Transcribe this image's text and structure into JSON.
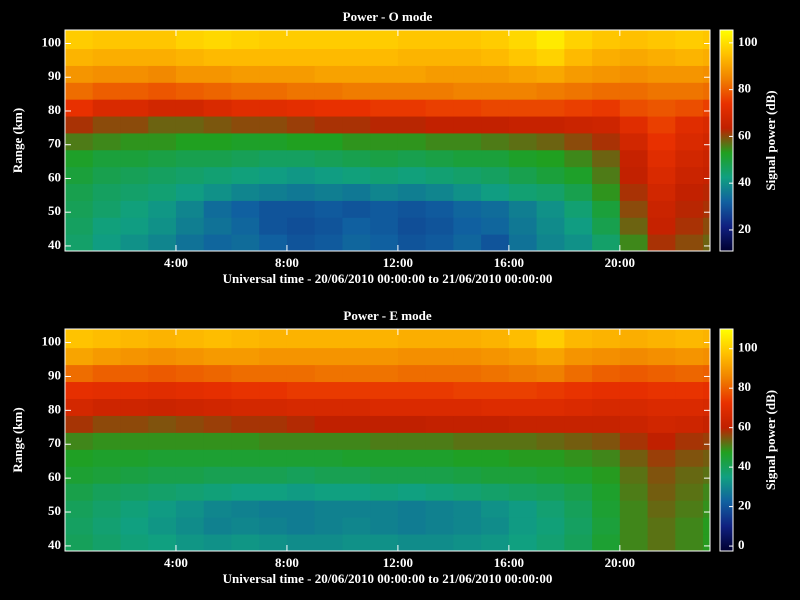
{
  "chart_data": [
    {
      "type": "heatmap",
      "title": "Power - O mode",
      "xlabel": "Universal time - 20/06/2010 00:00:00 to 21/06/2010 00:00:00",
      "ylabel": "Range (km)",
      "colorbar_label": "Signal power (dB)",
      "xbins": [
        0,
        1,
        2,
        3,
        4,
        5,
        6,
        7,
        8,
        9,
        10,
        11,
        12,
        13,
        14,
        15,
        16,
        17,
        18,
        19,
        20,
        21,
        22,
        23,
        23.25
      ],
      "ybins": [
        38.5,
        43.5,
        48.5,
        53.5,
        58.5,
        63.5,
        68.5,
        73.5,
        78.5,
        83.5,
        88.5,
        93.5,
        98.5,
        104
      ],
      "xlim": [
        0,
        23.25
      ],
      "ylim": [
        38.5,
        104
      ],
      "zlim": [
        11,
        105.5
      ],
      "xticks": [
        {
          "value": 4,
          "label": "4:00"
        },
        {
          "value": 8,
          "label": "8:00"
        },
        {
          "value": 12,
          "label": "12:00"
        },
        {
          "value": 16,
          "label": "16:00"
        },
        {
          "value": 20,
          "label": "20:00"
        }
      ],
      "yticks": [
        40,
        50,
        60,
        70,
        80,
        90,
        100
      ],
      "zticks": [
        20,
        40,
        60,
        80,
        100
      ],
      "colorscale": [
        "#000030",
        "#102080",
        "#1060a0",
        "#10a080",
        "#20a020",
        "#c02000",
        "#e83000",
        "#f08000",
        "#ffc000",
        "#ffff00"
      ],
      "z": [
        [
          45,
          42,
          40,
          38,
          35,
          33,
          34,
          32,
          30,
          31,
          33,
          32,
          30,
          31,
          33,
          30,
          35,
          38,
          40,
          45,
          55,
          62,
          60,
          58
        ],
        [
          46,
          43,
          42,
          40,
          37,
          35,
          33,
          30,
          29,
          30,
          32,
          31,
          29,
          30,
          32,
          33,
          36,
          39,
          42,
          48,
          58,
          65,
          62,
          60
        ],
        [
          47,
          45,
          43,
          41,
          38,
          34,
          32,
          30,
          30,
          31,
          30,
          31,
          30,
          31,
          33,
          34,
          37,
          40,
          44,
          50,
          60,
          66,
          63,
          62
        ],
        [
          48,
          46,
          45,
          44,
          42,
          40,
          38,
          37,
          36,
          37,
          36,
          38,
          37,
          38,
          40,
          42,
          44,
          45,
          48,
          54,
          62,
          68,
          64,
          63
        ],
        [
          50,
          48,
          47,
          46,
          45,
          44,
          43,
          42,
          41,
          42,
          43,
          44,
          43,
          44,
          45,
          46,
          48,
          50,
          52,
          56,
          64,
          70,
          66,
          65
        ],
        [
          52,
          50,
          50,
          49,
          48,
          48,
          47,
          46,
          46,
          47,
          48,
          49,
          48,
          49,
          50,
          50,
          52,
          53,
          55,
          58,
          65,
          72,
          68,
          66
        ],
        [
          56,
          55,
          54,
          54,
          53,
          53,
          52,
          52,
          53,
          53,
          54,
          54,
          54,
          55,
          55,
          56,
          57,
          58,
          60,
          62,
          68,
          74,
          70,
          68
        ],
        [
          62,
          60,
          60,
          58,
          58,
          59,
          60,
          60,
          61,
          62,
          62,
          63,
          63,
          64,
          64,
          64,
          65,
          65,
          66,
          67,
          72,
          76,
          72,
          70
        ],
        [
          74,
          70,
          70,
          68,
          68,
          70,
          72,
          72,
          73,
          74,
          74,
          75,
          75,
          76,
          76,
          77,
          77,
          77,
          76,
          75,
          78,
          79,
          78,
          76
        ],
        [
          82,
          80,
          80,
          79,
          80,
          81,
          82,
          82,
          83,
          83,
          84,
          84,
          84,
          84,
          85,
          85,
          85,
          84,
          83,
          82,
          82,
          83,
          83,
          82
        ],
        [
          88,
          87,
          87,
          86,
          88,
          88,
          89,
          89,
          89,
          90,
          90,
          90,
          90,
          89,
          89,
          89,
          90,
          91,
          89,
          88,
          87,
          88,
          88,
          87
        ],
        [
          93,
          92,
          92,
          92,
          93,
          94,
          94,
          94,
          94,
          94,
          94,
          94,
          93,
          93,
          93,
          94,
          96,
          98,
          94,
          92,
          91,
          92,
          93,
          92
        ],
        [
          97,
          96,
          96,
          96,
          98,
          99,
          98,
          97,
          97,
          97,
          97,
          97,
          96,
          96,
          96,
          97,
          99,
          102,
          98,
          96,
          95,
          96,
          97,
          96
        ]
      ]
    },
    {
      "type": "heatmap",
      "title": "Power - E mode",
      "xlabel": "Universal time - 20/06/2010 00:00:00 to 21/06/2010 00:00:00",
      "ylabel": "Range (km)",
      "colorbar_label": "Signal power (dB)",
      "xbins": [
        0,
        1,
        2,
        3,
        4,
        5,
        6,
        7,
        8,
        9,
        10,
        11,
        12,
        13,
        14,
        15,
        16,
        17,
        18,
        19,
        20,
        21,
        22,
        23,
        23.25
      ],
      "ybins": [
        38.5,
        43.5,
        48.5,
        53.5,
        58.5,
        63.5,
        68.5,
        73.5,
        78.5,
        83.5,
        88.5,
        93.5,
        98.5,
        104
      ],
      "xlim": [
        0,
        23.25
      ],
      "ylim": [
        38.5,
        104
      ],
      "zlim": [
        -2.5,
        110
      ],
      "xticks": [
        {
          "value": 4,
          "label": "4:00"
        },
        {
          "value": 8,
          "label": "8:00"
        },
        {
          "value": 12,
          "label": "12:00"
        },
        {
          "value": 16,
          "label": "16:00"
        },
        {
          "value": 20,
          "label": "20:00"
        }
      ],
      "yticks": [
        40,
        50,
        60,
        70,
        80,
        90,
        100
      ],
      "zticks": [
        0,
        20,
        40,
        60,
        80,
        100
      ],
      "colorscale": [
        "#000030",
        "#102080",
        "#1060a0",
        "#10a080",
        "#20a020",
        "#c02000",
        "#e83000",
        "#f08000",
        "#ffc000",
        "#ffff00"
      ],
      "z": [
        [
          40,
          38,
          36,
          35,
          33,
          32,
          33,
          32,
          31,
          31,
          32,
          32,
          31,
          31,
          32,
          33,
          35,
          37,
          40,
          45,
          50,
          52,
          50,
          48
        ],
        [
          39,
          37,
          35,
          33,
          31,
          29,
          30,
          29,
          28,
          29,
          30,
          29,
          28,
          29,
          30,
          31,
          34,
          36,
          39,
          44,
          50,
          52,
          50,
          48
        ],
        [
          40,
          38,
          36,
          34,
          32,
          30,
          29,
          28,
          28,
          29,
          29,
          29,
          28,
          29,
          30,
          32,
          34,
          37,
          40,
          45,
          50,
          53,
          51,
          49
        ],
        [
          42,
          40,
          39,
          38,
          37,
          36,
          35,
          35,
          34,
          35,
          35,
          36,
          35,
          36,
          37,
          38,
          39,
          40,
          42,
          46,
          51,
          54,
          52,
          50
        ],
        [
          45,
          44,
          43,
          42,
          42,
          41,
          41,
          41,
          40,
          41,
          41,
          42,
          42,
          42,
          43,
          44,
          44,
          45,
          46,
          48,
          52,
          55,
          53,
          52
        ],
        [
          47,
          46,
          46,
          45,
          45,
          45,
          45,
          45,
          45,
          45,
          46,
          46,
          46,
          46,
          47,
          47,
          48,
          48,
          49,
          50,
          54,
          57,
          55,
          54
        ],
        [
          50,
          49,
          49,
          49,
          49,
          49,
          49,
          50,
          50,
          50,
          50,
          51,
          51,
          51,
          52,
          52,
          52,
          53,
          54,
          55,
          58,
          60,
          58,
          57
        ],
        [
          58,
          56,
          56,
          55,
          56,
          57,
          58,
          58,
          59,
          60,
          60,
          60,
          60,
          61,
          61,
          61,
          62,
          62,
          62,
          62,
          63,
          65,
          64,
          62
        ],
        [
          66,
          64,
          64,
          63,
          64,
          65,
          66,
          66,
          67,
          67,
          67,
          68,
          68,
          68,
          68,
          69,
          69,
          69,
          68,
          67,
          67,
          68,
          68,
          67
        ],
        [
          72,
          71,
          71,
          70,
          71,
          72,
          73,
          73,
          74,
          74,
          74,
          74,
          74,
          74,
          75,
          75,
          75,
          74,
          73,
          72,
          72,
          73,
          73,
          72
        ],
        [
          82,
          80,
          80,
          79,
          80,
          81,
          82,
          82,
          82,
          83,
          83,
          83,
          82,
          82,
          82,
          83,
          84,
          85,
          82,
          80,
          79,
          80,
          81,
          80
        ],
        [
          92,
          90,
          89,
          88,
          89,
          90,
          90,
          89,
          89,
          89,
          89,
          89,
          88,
          88,
          88,
          89,
          90,
          92,
          89,
          88,
          87,
          88,
          89,
          88
        ],
        [
          98,
          97,
          96,
          95,
          96,
          97,
          96,
          95,
          95,
          95,
          95,
          95,
          94,
          94,
          94,
          95,
          97,
          100,
          96,
          95,
          94,
          95,
          96,
          95
        ]
      ]
    }
  ]
}
